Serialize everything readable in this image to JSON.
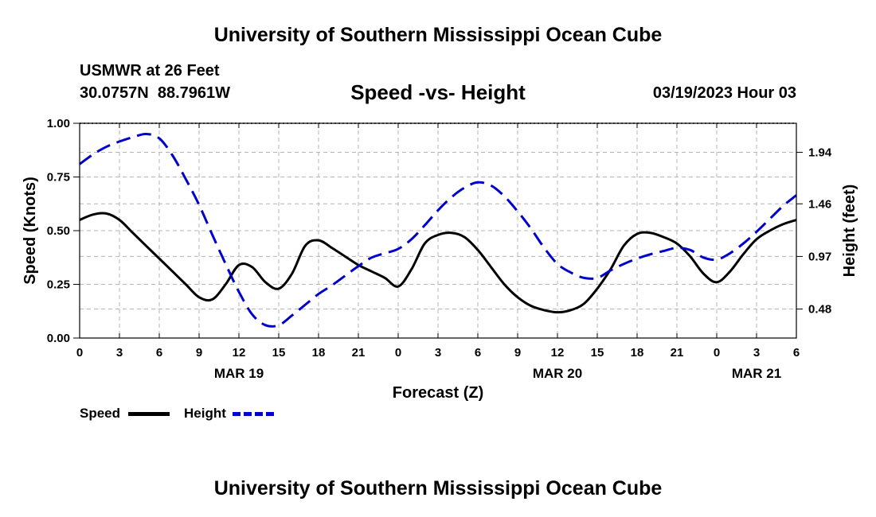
{
  "page_title": "University of Southern Mississippi Ocean Cube",
  "footer_title": "University of Southern Mississippi Ocean Cube",
  "station": {
    "name": "USMWR at 26 Feet",
    "coords": "30.0757N  88.7961W",
    "datetime": "03/19/2023 Hour 03"
  },
  "legend": {
    "speed_label": "Speed",
    "height_label": "Height"
  },
  "colors": {
    "speed": "#000000",
    "height": "#0000cc",
    "grid": "#b4b4b4"
  },
  "chart_data": {
    "type": "line",
    "title": "Speed -vs- Height",
    "xlabel": "Forecast (Z)",
    "ylabel": "Speed (Knots)",
    "y2label": "Height (feet)",
    "xlim": [
      0,
      54
    ],
    "ylim": [
      0,
      1
    ],
    "y2lim": [
      0.21,
      2.21
    ],
    "x_ticks": [
      {
        "x": 0,
        "label": "0"
      },
      {
        "x": 3,
        "label": "3"
      },
      {
        "x": 6,
        "label": "6"
      },
      {
        "x": 9,
        "label": "9"
      },
      {
        "x": 12,
        "label": "12"
      },
      {
        "x": 15,
        "label": "15"
      },
      {
        "x": 18,
        "label": "18"
      },
      {
        "x": 21,
        "label": "21"
      },
      {
        "x": 24,
        "label": "0"
      },
      {
        "x": 27,
        "label": "3"
      },
      {
        "x": 30,
        "label": "6"
      },
      {
        "x": 33,
        "label": "9"
      },
      {
        "x": 36,
        "label": "12"
      },
      {
        "x": 39,
        "label": "15"
      },
      {
        "x": 42,
        "label": "18"
      },
      {
        "x": 45,
        "label": "21"
      },
      {
        "x": 48,
        "label": "0"
      },
      {
        "x": 51,
        "label": "3"
      },
      {
        "x": 54,
        "label": "6"
      }
    ],
    "date_labels": [
      {
        "x": 12,
        "label": "MAR 19"
      },
      {
        "x": 36,
        "label": "MAR 20"
      },
      {
        "x": 51,
        "label": "MAR 21"
      }
    ],
    "y_ticks": [
      {
        "value": 0,
        "label": "0.00"
      },
      {
        "value": 0.25,
        "label": "0.25"
      },
      {
        "value": 0.5,
        "label": "0.50"
      },
      {
        "value": 0.75,
        "label": "0.75"
      },
      {
        "value": 1.0,
        "label": "1.00"
      }
    ],
    "y2_ticks": [
      {
        "value": 0.48,
        "label": "0.48"
      },
      {
        "value": 0.97,
        "label": "0.97"
      },
      {
        "value": 1.46,
        "label": "1.46"
      },
      {
        "value": 1.94,
        "label": "1.94"
      }
    ],
    "series": [
      {
        "name": "Speed",
        "axis": "left",
        "style": "solid",
        "x": [
          0,
          1,
          2,
          3,
          4,
          5,
          6,
          7,
          8,
          9,
          10,
          11,
          12,
          13,
          14,
          15,
          16,
          17,
          18,
          19,
          20,
          21,
          22,
          23,
          24,
          25,
          26,
          27,
          28,
          29,
          30,
          31,
          32,
          33,
          34,
          35,
          36,
          37,
          38,
          39,
          40,
          41,
          42,
          43,
          44,
          45,
          46,
          47,
          48,
          49,
          50,
          51,
          52,
          53,
          54
        ],
        "values": [
          0.55,
          0.575,
          0.58,
          0.55,
          0.49,
          0.43,
          0.37,
          0.31,
          0.25,
          0.19,
          0.18,
          0.25,
          0.34,
          0.33,
          0.26,
          0.23,
          0.3,
          0.43,
          0.455,
          0.42,
          0.38,
          0.34,
          0.31,
          0.28,
          0.24,
          0.32,
          0.44,
          0.48,
          0.49,
          0.47,
          0.41,
          0.33,
          0.25,
          0.19,
          0.15,
          0.13,
          0.12,
          0.13,
          0.16,
          0.23,
          0.32,
          0.43,
          0.485,
          0.49,
          0.47,
          0.44,
          0.38,
          0.3,
          0.26,
          0.31,
          0.39,
          0.46,
          0.5,
          0.53,
          0.55
        ]
      },
      {
        "name": "Height",
        "axis": "right",
        "style": "dashed",
        "x": [
          0,
          1,
          2,
          3,
          4,
          5,
          6,
          7,
          8,
          9,
          10,
          11,
          12,
          13,
          14,
          15,
          16,
          17,
          18,
          19,
          20,
          21,
          22,
          23,
          24,
          25,
          26,
          27,
          28,
          29,
          30,
          31,
          32,
          33,
          34,
          35,
          36,
          37,
          38,
          39,
          40,
          41,
          42,
          43,
          44,
          45,
          46,
          47,
          48,
          49,
          50,
          51,
          52,
          53,
          54
        ],
        "values": [
          1.83,
          1.92,
          1.99,
          2.04,
          2.08,
          2.11,
          2.07,
          1.91,
          1.69,
          1.45,
          1.17,
          0.9,
          0.64,
          0.43,
          0.33,
          0.33,
          0.42,
          0.52,
          0.62,
          0.7,
          0.79,
          0.88,
          0.96,
          1.0,
          1.04,
          1.13,
          1.26,
          1.4,
          1.52,
          1.61,
          1.66,
          1.63,
          1.53,
          1.39,
          1.23,
          1.05,
          0.9,
          0.82,
          0.77,
          0.77,
          0.84,
          0.9,
          0.95,
          0.99,
          1.02,
          1.05,
          1.03,
          0.96,
          0.94,
          1.0,
          1.09,
          1.2,
          1.32,
          1.44,
          1.54
        ]
      }
    ]
  }
}
